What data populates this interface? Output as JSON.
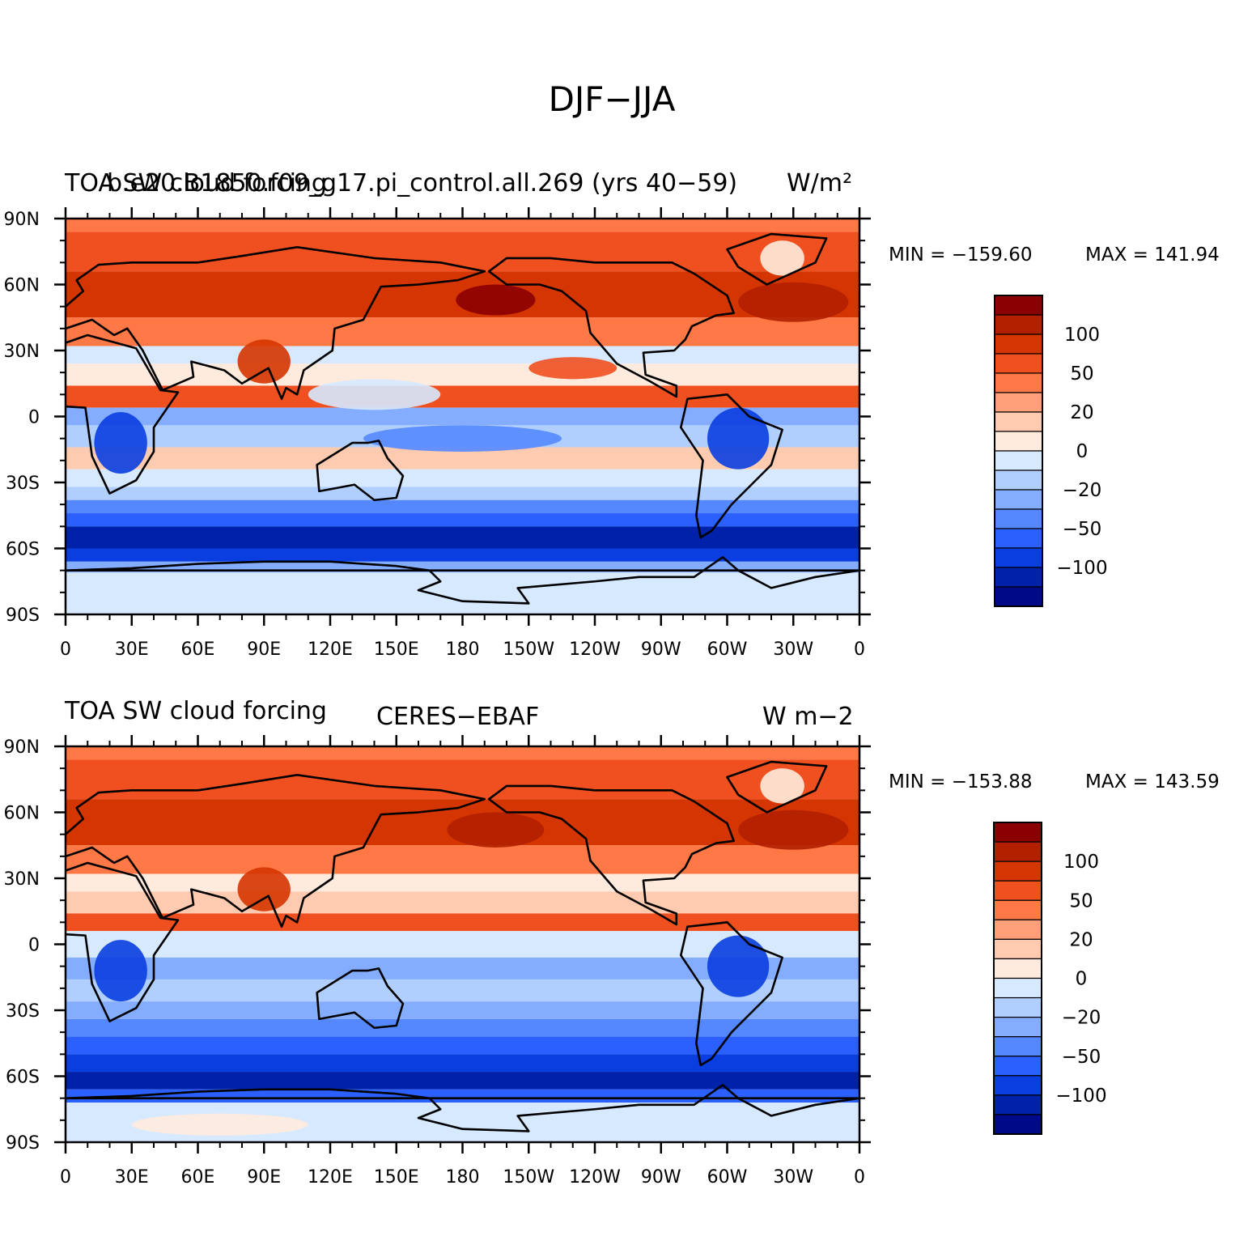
{
  "figure": {
    "title": "DJF−JJA"
  },
  "panels": [
    {
      "left_title": "TOA SW cloud forcing",
      "center_title": "b.e20.B1850.f09_g17.pi_control.all.269 (yrs 40−59)",
      "units": "W/m²",
      "min_label": "MIN = −159.60",
      "max_label": "MAX = 141.94"
    },
    {
      "left_title": "TOA SW cloud forcing",
      "center_title": "CERES−EBAF",
      "units": "W m−2",
      "min_label": "MIN = −153.88",
      "max_label": "MAX = 143.59"
    }
  ],
  "axes": {
    "lat_ticks": [
      "90N",
      "60N",
      "30N",
      "0",
      "30S",
      "60S",
      "90S"
    ],
    "lat_values": [
      90,
      60,
      30,
      0,
      -30,
      -60,
      -90
    ],
    "lon_ticks": [
      "0",
      "30E",
      "60E",
      "90E",
      "120E",
      "150E",
      "180",
      "150W",
      "120W",
      "90W",
      "60W",
      "30W",
      "0"
    ],
    "lon_values": [
      0,
      30,
      60,
      90,
      120,
      150,
      180,
      210,
      240,
      270,
      300,
      330,
      360
    ]
  },
  "colorbar": {
    "colors": [
      "#8b0000",
      "#b22000",
      "#d53500",
      "#f05020",
      "#ff7845",
      "#ffa07a",
      "#ffcbb0",
      "#ffebdd",
      "#d6e9ff",
      "#b0cfff",
      "#85adff",
      "#5588ff",
      "#2b60ff",
      "#0a3ee0",
      "#0022aa",
      "#000a88"
    ],
    "labels": [
      {
        "text": "100",
        "slot": 1
      },
      {
        "text": "50",
        "slot": 3
      },
      {
        "text": "20",
        "slot": 5
      },
      {
        "text": "0",
        "slot": 7
      },
      {
        "text": "−20",
        "slot": 9
      },
      {
        "text": "−50",
        "slot": 11
      },
      {
        "text": "−100",
        "slot": 13
      }
    ]
  },
  "map_data": [
    {
      "zonal_bands": [
        {
          "lat": [
            84,
            90
          ],
          "color": "#ff7845"
        },
        {
          "lat": [
            66,
            84
          ],
          "color": "#f05020"
        },
        {
          "lat": [
            45,
            66
          ],
          "color": "#d53500"
        },
        {
          "lat": [
            32,
            45
          ],
          "color": "#ff7845"
        },
        {
          "lat": [
            24,
            32
          ],
          "color": "#d6e9ff"
        },
        {
          "lat": [
            14,
            24
          ],
          "color": "#ffebdd"
        },
        {
          "lat": [
            4,
            14
          ],
          "color": "#f05020"
        },
        {
          "lat": [
            -4,
            4
          ],
          "color": "#85adff"
        },
        {
          "lat": [
            -14,
            -4
          ],
          "color": "#b0cfff"
        },
        {
          "lat": [
            -24,
            -14
          ],
          "color": "#ffcbb0"
        },
        {
          "lat": [
            -32,
            -24
          ],
          "color": "#d6e9ff"
        },
        {
          "lat": [
            -38,
            -32
          ],
          "color": "#b0cfff"
        },
        {
          "lat": [
            -44,
            -38
          ],
          "color": "#5588ff"
        },
        {
          "lat": [
            -50,
            -44
          ],
          "color": "#2b60ff"
        },
        {
          "lat": [
            -60,
            -50
          ],
          "color": "#0022aa"
        },
        {
          "lat": [
            -66,
            -60
          ],
          "color": "#0a3ee0"
        },
        {
          "lat": [
            -71,
            -66
          ],
          "color": "#85adff"
        },
        {
          "lat": [
            -90,
            -71
          ],
          "color": "#d6e9ff"
        }
      ],
      "features": [
        {
          "lon": 195,
          "lat": 53,
          "rx": 18,
          "ry": 7,
          "color": "#8b0000"
        },
        {
          "lon": 330,
          "lat": 52,
          "rx": 25,
          "ry": 9,
          "color": "#b22000"
        },
        {
          "lon": 140,
          "lat": 10,
          "rx": 30,
          "ry": 7,
          "color": "#d6e9ff"
        },
        {
          "lon": 180,
          "lat": -10,
          "rx": 45,
          "ry": 6,
          "color": "#5588ff"
        },
        {
          "lon": 25,
          "lat": -12,
          "rx": 12,
          "ry": 14,
          "color": "#0a3ee0"
        },
        {
          "lon": 305,
          "lat": -10,
          "rx": 14,
          "ry": 14,
          "color": "#0a3ee0"
        },
        {
          "lon": 325,
          "lat": 72,
          "rx": 10,
          "ry": 8,
          "color": "#ffebdd"
        },
        {
          "lon": 90,
          "lat": 25,
          "rx": 12,
          "ry": 10,
          "color": "#d53500"
        },
        {
          "lon": 230,
          "lat": 22,
          "rx": 20,
          "ry": 5,
          "color": "#f05020"
        }
      ]
    },
    {
      "zonal_bands": [
        {
          "lat": [
            84,
            90
          ],
          "color": "#ff7845"
        },
        {
          "lat": [
            66,
            84
          ],
          "color": "#f05020"
        },
        {
          "lat": [
            45,
            66
          ],
          "color": "#d53500"
        },
        {
          "lat": [
            32,
            45
          ],
          "color": "#ff7845"
        },
        {
          "lat": [
            24,
            32
          ],
          "color": "#ffebdd"
        },
        {
          "lat": [
            14,
            24
          ],
          "color": "#ffcbb0"
        },
        {
          "lat": [
            6,
            14
          ],
          "color": "#f05020"
        },
        {
          "lat": [
            -6,
            6
          ],
          "color": "#d6e9ff"
        },
        {
          "lat": [
            -16,
            -6
          ],
          "color": "#85adff"
        },
        {
          "lat": [
            -26,
            -16
          ],
          "color": "#b0cfff"
        },
        {
          "lat": [
            -34,
            -26
          ],
          "color": "#85adff"
        },
        {
          "lat": [
            -42,
            -34
          ],
          "color": "#5588ff"
        },
        {
          "lat": [
            -50,
            -42
          ],
          "color": "#2b60ff"
        },
        {
          "lat": [
            -58,
            -50
          ],
          "color": "#0a3ee0"
        },
        {
          "lat": [
            -66,
            -58
          ],
          "color": "#0022aa"
        },
        {
          "lat": [
            -72,
            -66
          ],
          "color": "#2b60ff"
        },
        {
          "lat": [
            -90,
            -72
          ],
          "color": "#d6e9ff"
        }
      ],
      "features": [
        {
          "lon": 195,
          "lat": 52,
          "rx": 22,
          "ry": 8,
          "color": "#b22000"
        },
        {
          "lon": 330,
          "lat": 52,
          "rx": 25,
          "ry": 9,
          "color": "#b22000"
        },
        {
          "lon": 25,
          "lat": -12,
          "rx": 12,
          "ry": 14,
          "color": "#0a3ee0"
        },
        {
          "lon": 305,
          "lat": -10,
          "rx": 14,
          "ry": 14,
          "color": "#0a3ee0"
        },
        {
          "lon": 325,
          "lat": 72,
          "rx": 10,
          "ry": 8,
          "color": "#ffebdd"
        },
        {
          "lon": 90,
          "lat": 25,
          "rx": 12,
          "ry": 10,
          "color": "#d53500"
        },
        {
          "lon": 70,
          "lat": -82,
          "rx": 40,
          "ry": 5,
          "color": "#ffebdd"
        }
      ]
    }
  ]
}
